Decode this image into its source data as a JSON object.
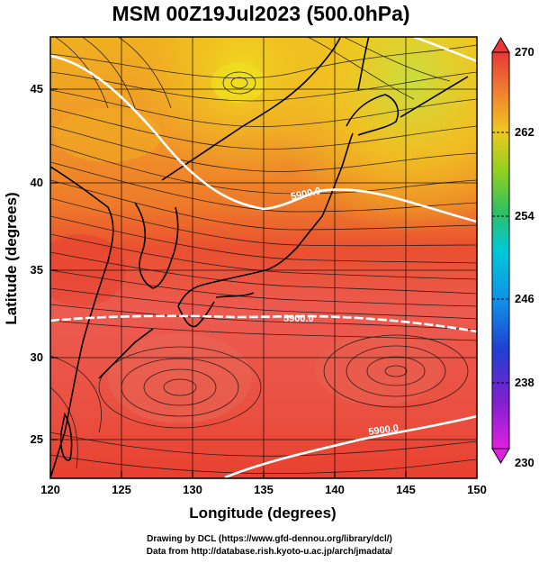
{
  "title": "MSM 00Z19Jul2023 (500.0hPa)",
  "axes": {
    "xlabel": "Longitude (degrees)",
    "ylabel": "Latitude  (degrees)",
    "x_ticks": [
      "120",
      "125",
      "130",
      "135",
      "140",
      "145",
      "150"
    ],
    "y_ticks": [
      "45",
      "40",
      "35",
      "30",
      "25"
    ],
    "xlim": [
      120,
      150
    ],
    "ylim": [
      22.4,
      47.6
    ]
  },
  "colorbar": {
    "labels": [
      "270",
      "262",
      "254",
      "246",
      "238",
      "230"
    ],
    "min": 230,
    "max": 270
  },
  "contours": {
    "labels": [
      "5900.0",
      "5900.0",
      "5900.0"
    ]
  },
  "credits": {
    "line1": "Drawing by DCL (https://www.gfd-dennou.org/library/dcl/)",
    "line2": "Data from http://database.rish.kyoto-u.ac.jp/arch/jmadata/"
  },
  "colors": {
    "warm_max": "#e83030",
    "warm_mid": "#f08030",
    "yellow": "#f0c020",
    "green": "#40c040",
    "cyan": "#00c0e0",
    "blue": "#2040d0",
    "magenta": "#e020e0"
  }
}
